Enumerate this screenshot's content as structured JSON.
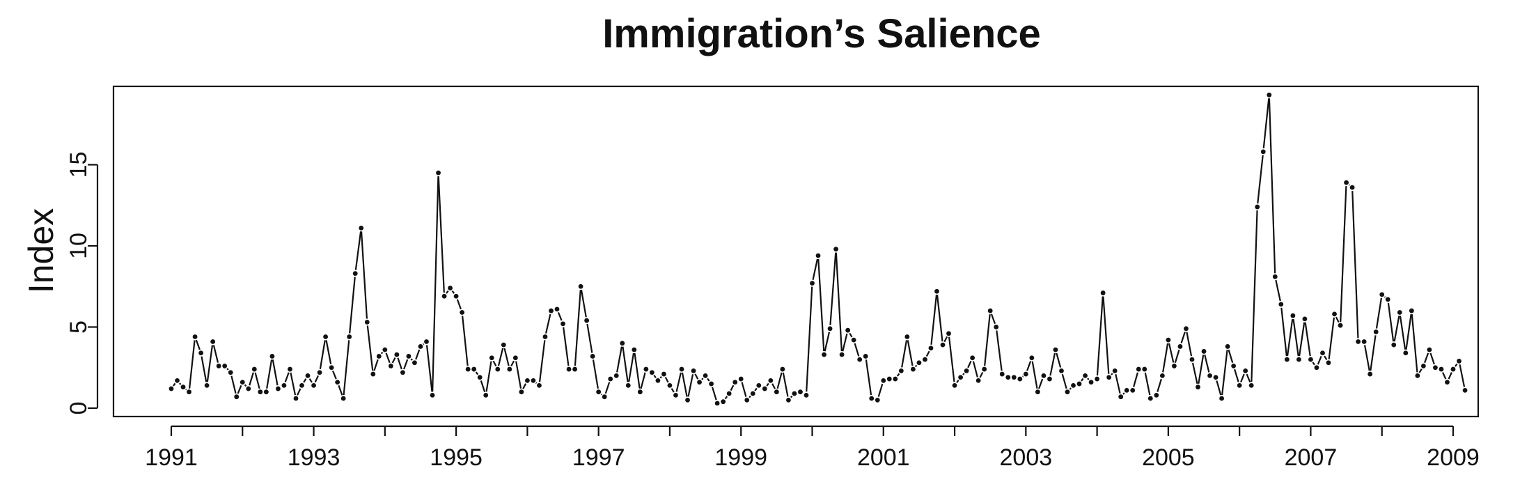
{
  "chart_data": {
    "type": "line",
    "title": "Immigration’s Salience",
    "ylabel": "Index",
    "xlabel": "",
    "xlim": [
      1991,
      2009
    ],
    "ylim": [
      0,
      19.5
    ],
    "x_ticks": [
      1991,
      1992,
      1993,
      1994,
      1995,
      1996,
      1997,
      1998,
      1999,
      2000,
      2001,
      2002,
      2003,
      2004,
      2005,
      2006,
      2007,
      2008,
      2009
    ],
    "x_tick_labels": [
      "1991",
      "1993",
      "1995",
      "1997",
      "1999",
      "2001",
      "2003",
      "2005",
      "2007",
      "2009"
    ],
    "y_ticks": [
      0,
      5,
      10,
      15
    ],
    "y_tick_labels": [
      "0",
      "5",
      "10",
      "15"
    ],
    "grid": false,
    "legend": false,
    "series": [
      {
        "values": [
          1.2,
          1.7,
          1.3,
          1.0,
          4.4,
          3.4,
          1.4,
          4.1,
          2.6,
          2.6,
          2.2,
          0.7,
          1.6,
          1.2,
          2.4,
          1.0,
          1.0,
          3.2,
          1.2,
          1.4,
          2.4,
          0.6,
          1.4,
          2.0,
          1.4,
          2.2,
          4.4,
          2.5,
          1.6,
          0.6,
          4.4,
          8.3,
          11.1,
          5.3,
          2.1,
          3.2,
          3.6,
          2.6,
          3.3,
          2.2,
          3.2,
          2.8,
          3.8,
          4.1,
          0.8,
          14.5,
          6.9,
          7.4,
          6.9,
          5.9,
          2.4,
          2.4,
          1.9,
          0.8,
          3.1,
          2.4,
          3.9,
          2.4,
          3.1,
          1.0,
          1.7,
          1.7,
          1.4,
          4.4,
          6.0,
          6.1,
          5.2,
          2.4,
          2.4,
          7.5,
          5.4,
          3.2,
          1.0,
          0.7,
          1.8,
          2.0,
          4.0,
          1.4,
          3.6,
          1.0,
          2.4,
          2.2,
          1.7,
          2.1,
          1.4,
          0.8,
          2.4,
          0.5,
          2.3,
          1.6,
          2.0,
          1.5,
          0.3,
          0.4,
          0.9,
          1.6,
          1.8,
          0.5,
          0.9,
          1.4,
          1.2,
          1.7,
          1.0,
          2.4,
          0.5,
          0.9,
          1.0,
          0.8,
          7.7,
          9.4,
          3.3,
          4.9,
          9.8,
          3.3,
          4.8,
          4.2,
          3.0,
          3.2,
          0.6,
          0.5,
          1.7,
          1.8,
          1.8,
          2.3,
          4.4,
          2.4,
          2.8,
          3.0,
          3.7,
          7.2,
          3.9,
          4.6,
          1.4,
          1.9,
          2.3,
          3.1,
          1.7,
          2.4,
          6.0,
          5.0,
          2.1,
          1.9,
          1.9,
          1.8,
          2.1,
          3.1,
          1.0,
          2.0,
          1.8,
          3.6,
          2.3,
          1.0,
          1.4,
          1.5,
          2.0,
          1.6,
          1.8,
          7.1,
          1.9,
          2.3,
          0.7,
          1.1,
          1.1,
          2.4,
          2.4,
          0.6,
          0.8,
          2.0,
          4.2,
          2.6,
          3.8,
          4.9,
          3.0,
          1.3,
          3.5,
          2.0,
          1.9,
          0.6,
          3.8,
          2.6,
          1.4,
          2.3,
          1.4,
          12.4,
          15.8,
          19.3,
          8.1,
          6.4,
          3.0,
          5.7,
          3.0,
          5.5,
          3.0,
          2.5,
          3.4,
          2.8,
          5.8,
          5.1,
          13.9,
          13.6,
          4.1,
          4.1,
          2.1,
          4.7,
          7.0,
          6.7,
          3.9,
          5.9,
          3.4,
          6.0,
          2.0,
          2.6,
          3.6,
          2.5,
          2.4,
          1.6,
          2.4,
          2.9,
          1.1
        ],
        "start": 1991,
        "step": 0.08333333
      }
    ]
  }
}
